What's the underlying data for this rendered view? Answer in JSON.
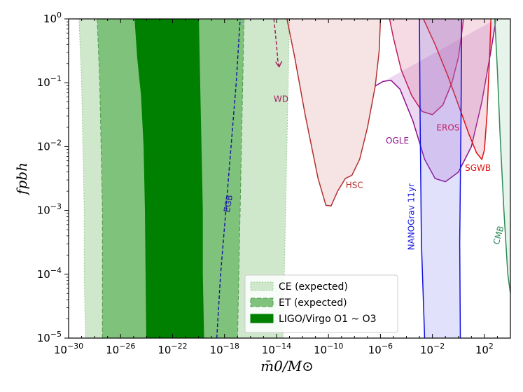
{
  "chart_data": {
    "type": "area",
    "title": "",
    "xlabel": "m̄0/M⊙",
    "ylabel": "fpbh",
    "xlim_log10": [
      -30,
      4
    ],
    "ylim_log10": [
      -5,
      0
    ],
    "x_ticks": [
      {
        "exp": -30,
        "label": "10",
        "sup": "−30"
      },
      {
        "exp": -26,
        "label": "10",
        "sup": "−26"
      },
      {
        "exp": -22,
        "label": "10",
        "sup": "−22"
      },
      {
        "exp": -18,
        "label": "10",
        "sup": "−18"
      },
      {
        "exp": -14,
        "label": "10",
        "sup": "−14"
      },
      {
        "exp": -10,
        "label": "10",
        "sup": "−10"
      },
      {
        "exp": -6,
        "label": "10",
        "sup": "−6"
      },
      {
        "exp": -2,
        "label": "10",
        "sup": "−2"
      },
      {
        "exp": 2,
        "label": "10",
        "sup": "2"
      }
    ],
    "y_ticks": [
      {
        "exp": 0,
        "label": "10",
        "sup": "0"
      },
      {
        "exp": -1,
        "label": "10",
        "sup": "−1"
      },
      {
        "exp": -2,
        "label": "10",
        "sup": "−2"
      },
      {
        "exp": -3,
        "label": "10",
        "sup": "−3"
      },
      {
        "exp": -4,
        "label": "10",
        "sup": "−4"
      },
      {
        "exp": -5,
        "label": "10",
        "sup": "−5"
      }
    ],
    "gw_bands": [
      {
        "name": "CE (expected)",
        "color": "#cfe8cc",
        "stroke": "#9acd94",
        "dash": "2,2",
        "left": [
          [
            -29.2,
            0
          ],
          [
            -29.0,
            -1
          ],
          [
            -28.9,
            -2
          ],
          [
            -28.8,
            -3
          ],
          [
            -28.8,
            -4
          ],
          [
            -28.7,
            -5
          ]
        ],
        "right": [
          [
            -13.0,
            0
          ],
          [
            -13.1,
            -1
          ],
          [
            -13.2,
            -2
          ],
          [
            -13.3,
            -3
          ],
          [
            -13.4,
            -4
          ],
          [
            -13.5,
            -5
          ]
        ]
      },
      {
        "name": "ET (expected)",
        "color": "#7fc27b",
        "stroke": "#4f9a4c",
        "dash": "6,3",
        "left": [
          [
            -27.8,
            0
          ],
          [
            -27.6,
            -1
          ],
          [
            -27.5,
            -2
          ],
          [
            -27.4,
            -3
          ],
          [
            -27.4,
            -4
          ],
          [
            -27.4,
            -5
          ]
        ],
        "right": [
          [
            -16.5,
            0
          ],
          [
            -16.6,
            -1
          ],
          [
            -16.7,
            -2
          ],
          [
            -16.8,
            -3
          ],
          [
            -16.9,
            -4
          ],
          [
            -17.0,
            -5
          ]
        ]
      },
      {
        "name": "LIGO/Virgo O1 ~ O3",
        "color": "#008000",
        "stroke": "#008000",
        "dash": "",
        "left": [
          [
            -24.9,
            0
          ],
          [
            -24.7,
            -0.6
          ],
          [
            -24.4,
            -1.2
          ],
          [
            -24.2,
            -2
          ],
          [
            -24.1,
            -3
          ],
          [
            -24.0,
            -5
          ]
        ],
        "right": [
          [
            -20.0,
            0
          ],
          [
            -19.9,
            -1
          ],
          [
            -19.8,
            -2
          ],
          [
            -19.7,
            -3
          ],
          [
            -19.7,
            -4
          ],
          [
            -19.6,
            -5
          ]
        ]
      }
    ],
    "series": [
      {
        "name": "EGB",
        "color": "#1a1aa0",
        "dash": "5,3",
        "points": [
          [
            -18.6,
            -5
          ],
          [
            -18.3,
            -4
          ],
          [
            -17.9,
            -3
          ],
          [
            -17.5,
            -2
          ],
          [
            -17.1,
            -1
          ],
          [
            -16.8,
            0
          ]
        ]
      },
      {
        "name": "WD",
        "color": "#a3205d",
        "dash": "5,3",
        "fill": "rgba(230,190,210,0.55)",
        "points": [
          [
            -14.2,
            0
          ],
          [
            -14.1,
            -0.2
          ],
          [
            -14.0,
            -0.4
          ],
          [
            -13.9,
            -0.65
          ],
          [
            -13.8,
            -0.75
          ]
        ]
      },
      {
        "name": "HSC",
        "color": "#b33030",
        "fill": "rgba(215,130,130,0.22)",
        "points": [
          [
            -13.2,
            0
          ],
          [
            -12.6,
            -0.6
          ],
          [
            -11.8,
            -1.5
          ],
          [
            -10.8,
            -2.5
          ],
          [
            -10.2,
            -2.92
          ],
          [
            -9.8,
            -2.93
          ],
          [
            -9.3,
            -2.7
          ],
          [
            -8.7,
            -2.5
          ],
          [
            -8.2,
            -2.45
          ],
          [
            -7.6,
            -2.2
          ],
          [
            -7.0,
            -1.7
          ],
          [
            -6.4,
            -1.05
          ],
          [
            -6.1,
            -0.5
          ],
          [
            -6.0,
            0
          ]
        ]
      },
      {
        "name": "OGLE",
        "color": "#8b0f8b",
        "fill": "rgba(170,80,190,0.22)",
        "points": [
          [
            -6.4,
            -1.05
          ],
          [
            -5.8,
            -0.98
          ],
          [
            -5.2,
            -0.96
          ],
          [
            -4.5,
            -1.1
          ],
          [
            -3.5,
            -1.6
          ],
          [
            -2.6,
            -2.2
          ],
          [
            -1.8,
            -2.5
          ],
          [
            -1.0,
            -2.55
          ],
          [
            0,
            -2.4
          ],
          [
            1.0,
            -2.0
          ],
          [
            1.8,
            -1.3
          ],
          [
            2.5,
            -0.5
          ],
          [
            2.9,
            0
          ]
        ]
      },
      {
        "name": "EROS",
        "color": "#c01c60",
        "fill": "rgba(220,110,150,0.25)",
        "points": [
          [
            -5.3,
            0
          ],
          [
            -5.0,
            -0.3
          ],
          [
            -4.4,
            -0.8
          ],
          [
            -3.6,
            -1.2
          ],
          [
            -2.8,
            -1.45
          ],
          [
            -2.0,
            -1.5
          ],
          [
            -1.2,
            -1.35
          ],
          [
            -0.5,
            -1.0
          ],
          [
            0,
            -0.6
          ],
          [
            0.4,
            0
          ]
        ]
      },
      {
        "name": "SGWB",
        "color": "#e01010",
        "fill": "rgba(220,120,150,0.25)",
        "points": [
          [
            -2.7,
            0
          ],
          [
            -1.8,
            -0.4
          ],
          [
            -0.8,
            -0.9
          ],
          [
            0,
            -1.35
          ],
          [
            0.8,
            -1.8
          ],
          [
            1.4,
            -2.1
          ],
          [
            1.8,
            -2.2
          ],
          [
            2.0,
            -2.05
          ],
          [
            2.2,
            -1.5
          ],
          [
            2.4,
            -0.6
          ],
          [
            2.5,
            0
          ]
        ]
      },
      {
        "name": "NANOGrav 11yr",
        "color": "#1010e0",
        "fill": "rgba(120,120,240,0.22)",
        "points_left": [
          [
            -3.0,
            0
          ],
          [
            -2.95,
            -1.5
          ],
          [
            -2.85,
            -3.5
          ],
          [
            -2.6,
            -5
          ]
        ],
        "points_right": [
          [
            0.25,
            0
          ],
          [
            0.2,
            -1.5
          ],
          [
            0.1,
            -3.5
          ],
          [
            0.15,
            -5
          ]
        ]
      },
      {
        "name": "CMB",
        "color": "#2e8b57",
        "fill": "rgba(200,230,210,0.45)",
        "points": [
          [
            2.8,
            0
          ],
          [
            3.0,
            -0.8
          ],
          [
            3.2,
            -1.8
          ],
          [
            3.5,
            -3.0
          ],
          [
            3.8,
            -4.0
          ],
          [
            4.0,
            -4.3
          ]
        ]
      }
    ],
    "annotations": [
      {
        "text": "WD",
        "color": "#a3205d",
        "x": -13.65,
        "y": -1.3,
        "rotate": 0
      },
      {
        "text": "HSC",
        "color": "#b33030",
        "x": -8.0,
        "y": -2.65,
        "rotate": 0
      },
      {
        "text": "OGLE",
        "color": "#8b0f8b",
        "x": -4.7,
        "y": -1.95,
        "rotate": 0
      },
      {
        "text": "EROS",
        "color": "#c01c60",
        "x": -0.8,
        "y": -1.75,
        "rotate": 0
      },
      {
        "text": "SGWB",
        "color": "#e01010",
        "x": 1.5,
        "y": -2.38,
        "rotate": 0
      },
      {
        "text": "EGB",
        "color": "#1a1aa0",
        "x": -17.5,
        "y": -2.9,
        "rotate": -80
      },
      {
        "text": "NANOGrav 11yr",
        "color": "#1010e0",
        "x": -3.4,
        "y": -3.1,
        "rotate": -90
      },
      {
        "text": "CMB",
        "color": "#2e8b57",
        "x": 3.3,
        "y": -3.4,
        "rotate": -75
      }
    ],
    "legend": {
      "placement": "bottom-center",
      "entries": [
        "CE (expected)",
        "ET (expected)",
        "LIGO/Virgo O1 ~ O3"
      ]
    }
  }
}
